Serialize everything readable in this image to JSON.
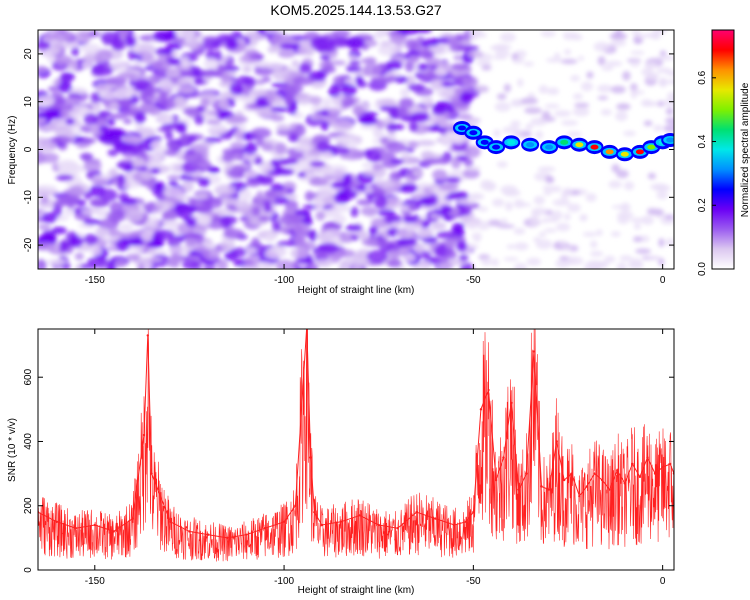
{
  "title": "KOM5.2025.144.13.53.G27",
  "chart_data": [
    {
      "type": "heatmap",
      "xlabel": "Height of straight line (km)",
      "ylabel": "Frequency (Hz)",
      "xlim": [
        -165,
        3
      ],
      "ylim": [
        -25,
        25
      ],
      "xticks": [
        -150,
        -100,
        -50,
        0
      ],
      "yticks": [
        -20,
        -10,
        0,
        10,
        20
      ],
      "grid": false,
      "colorbar": {
        "label": "Normalized spectral amplitude",
        "range": [
          0,
          0.75
        ],
        "ticks": [
          0.0,
          0.2,
          0.4,
          0.6
        ],
        "colors": [
          "#ffffff",
          "#dcc8f0",
          "#9b5cf0",
          "#6a00f5",
          "#0000ff",
          "#0090ff",
          "#00e8e8",
          "#00e070",
          "#80f000",
          "#e8e800",
          "#ff9000",
          "#ff0000",
          "#ff0070"
        ]
      },
      "noise_region": {
        "x": [
          -165,
          -50
        ],
        "freq": [
          -25,
          25
        ],
        "amplitude": [
          0.0,
          0.12
        ]
      },
      "signal_ridge": [
        {
          "x": -53,
          "freq": 4.5,
          "amp": 0.22
        },
        {
          "x": -50,
          "freq": 3.5,
          "amp": 0.26
        },
        {
          "x": -47,
          "freq": 1.5,
          "amp": 0.24
        },
        {
          "x": -44,
          "freq": 0.5,
          "amp": 0.28
        },
        {
          "x": -40,
          "freq": 1.5,
          "amp": 0.38
        },
        {
          "x": -35,
          "freq": 1.0,
          "amp": 0.3
        },
        {
          "x": -30,
          "freq": 0.5,
          "amp": 0.34
        },
        {
          "x": -26,
          "freq": 1.5,
          "amp": 0.45
        },
        {
          "x": -22,
          "freq": 1.0,
          "amp": 0.58
        },
        {
          "x": -18,
          "freq": 0.5,
          "amp": 0.66
        },
        {
          "x": -14,
          "freq": -0.5,
          "amp": 0.62
        },
        {
          "x": -10,
          "freq": -1.0,
          "amp": 0.55
        },
        {
          "x": -6,
          "freq": -0.5,
          "amp": 0.7
        },
        {
          "x": -3,
          "freq": 0.5,
          "amp": 0.5
        },
        {
          "x": 0,
          "freq": 1.5,
          "amp": 0.4
        },
        {
          "x": 2,
          "freq": 2.0,
          "amp": 0.3
        }
      ]
    },
    {
      "type": "line",
      "xlabel": "Height of straight line (km)",
      "ylabel": "SNR (10 * v/v)",
      "xlim": [
        -165,
        3
      ],
      "ylim": [
        0,
        750
      ],
      "xticks": [
        -150,
        -100,
        -50,
        0
      ],
      "yticks": [
        0,
        200,
        400,
        600
      ],
      "grid": false,
      "color": "#ff2020",
      "series": [
        {
          "x": [
            -165,
            -160,
            -155,
            -150,
            -145,
            -140,
            -137,
            -136,
            -135,
            -130,
            -125,
            -120,
            -115,
            -110,
            -105,
            -100,
            -97,
            -94,
            -93,
            -92,
            -90,
            -85,
            -80,
            -75,
            -70,
            -65,
            -60,
            -55,
            -52,
            -50,
            -48,
            -46,
            -44,
            -42,
            -40,
            -38,
            -36,
            -34,
            -32,
            -30,
            -28,
            -26,
            -24,
            -22,
            -20,
            -18,
            -16,
            -14,
            -12,
            -10,
            -8,
            -6,
            -4,
            -2,
            0,
            2,
            3
          ],
          "y": [
            180,
            150,
            130,
            140,
            120,
            160,
            420,
            730,
            300,
            150,
            120,
            110,
            100,
            110,
            130,
            150,
            200,
            760,
            350,
            180,
            140,
            150,
            170,
            140,
            130,
            180,
            160,
            140,
            150,
            180,
            500,
            560,
            280,
            350,
            520,
            250,
            300,
            680,
            260,
            250,
            400,
            280,
            300,
            230,
            260,
            300,
            280,
            250,
            310,
            270,
            330,
            290,
            350,
            300,
            320,
            330,
            300
          ]
        }
      ]
    }
  ]
}
